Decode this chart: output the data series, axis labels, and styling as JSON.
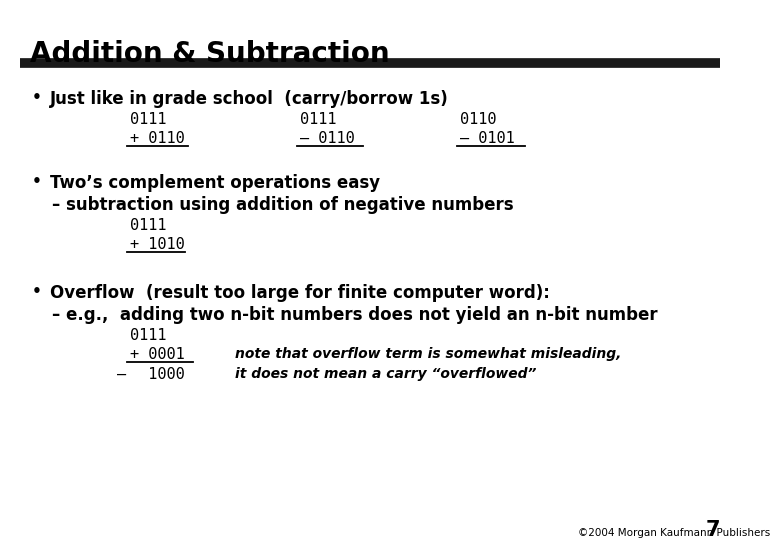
{
  "title": "Addition & Subtraction",
  "bg_color": "#ffffff",
  "title_color": "#000000",
  "bar_color": "#1a1a1a",
  "bullet1_bold": "Just like in grade school  (carry/borrow 1s)",
  "row1": [
    "0111",
    "0111",
    "0110"
  ],
  "row2_prefix": [
    "+ ",
    "– ",
    "– "
  ],
  "row2": [
    "0110",
    "0110",
    "0101"
  ],
  "bullet2_bold": "Two’s complement operations easy",
  "sub2_dash": "–",
  "sub2_text": " subtraction using addition of negative numbers",
  "row3": "0111",
  "row4_prefix": "+ ",
  "row4": "1010",
  "bullet3_bold": "Overflow  (result too large for finite computer word):",
  "sub3_dash": "–",
  "sub3_text": " e.g.,  adding two n-bit numbers does not yield an n-bit number",
  "row5": "0111",
  "row6_prefix": "+ ",
  "row6": "0001",
  "row6_note": "note that overflow term is somewhat misleading,",
  "row7_prefix": "–",
  "row7": "  1000",
  "row7_note": "it does not mean a carry “overflowed”",
  "footer": "©2004 Morgan Kaufmann Publishers",
  "page_num": "7"
}
